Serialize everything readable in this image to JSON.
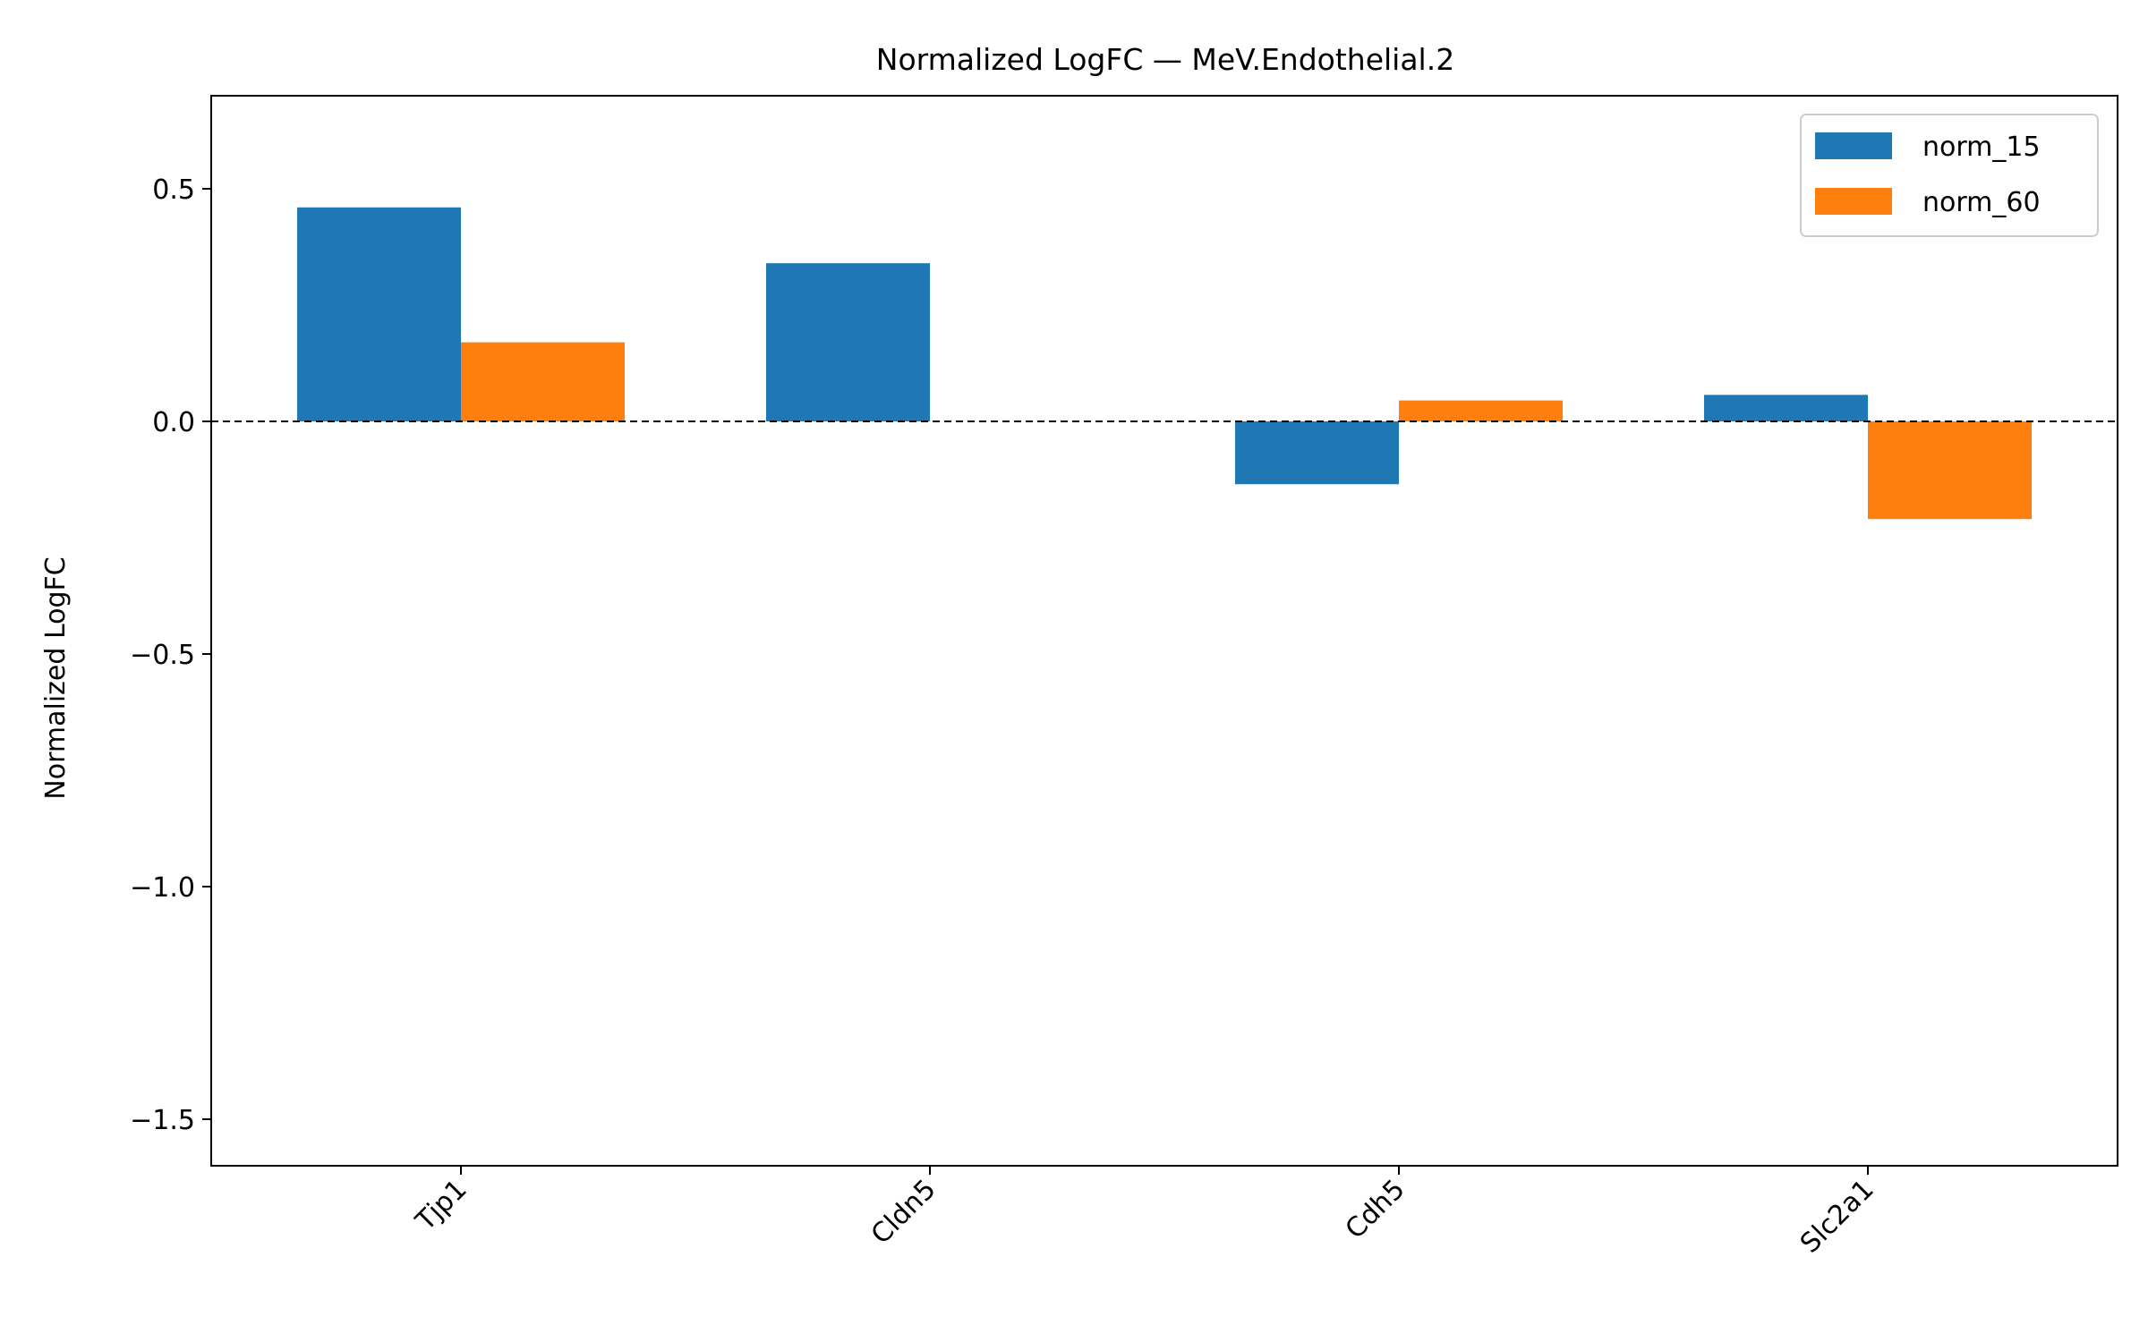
{
  "chart_data": {
    "type": "bar",
    "title": "Normalized LogFC — MeV.Endothelial.2",
    "xlabel": "",
    "ylabel": "Normalized LogFC",
    "categories": [
      "Tjp1",
      "Cldn5",
      "Cdh5",
      "Slc2a1"
    ],
    "series": [
      {
        "name": "norm_15",
        "color": "#1f77b4",
        "values": [
          0.46,
          0.34,
          -0.135,
          0.057
        ]
      },
      {
        "name": "norm_60",
        "color": "#ff7f0e",
        "values": [
          0.17,
          0.0,
          0.045,
          -0.21
        ]
      }
    ],
    "ylim": [
      -1.6,
      0.7
    ],
    "yticks": [
      0.5,
      0.0,
      -0.5,
      -1.0,
      -1.5
    ],
    "ytick_labels": [
      "0.5",
      "0.0",
      "−0.5",
      "−1.0",
      "−1.5"
    ],
    "reference_line": {
      "y": 0,
      "style": "dashed",
      "color": "#000000"
    },
    "grid": false,
    "legend_position": "top-right"
  }
}
